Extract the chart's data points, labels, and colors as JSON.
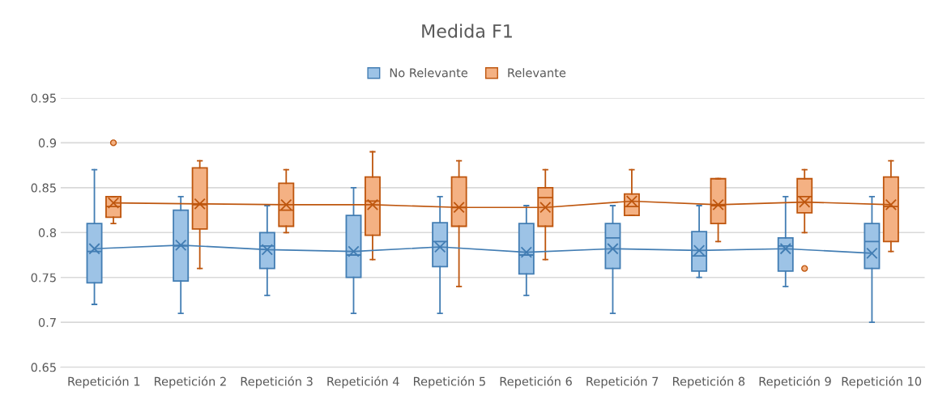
{
  "chart_data": {
    "type": "box",
    "title": "Medida F1",
    "categories": [
      "Repetición 1",
      "Repetición 2",
      "Repetición 3",
      "Repetición 4",
      "Repetición 5",
      "Repetición 6",
      "Repetición 7",
      "Repetición 8",
      "Repetición 9",
      "Repetición 10"
    ],
    "series": [
      {
        "name": "No Relevante",
        "color": "#9dc3e6",
        "boxes": [
          {
            "low": 0.72,
            "q1": 0.744,
            "median": 0.779,
            "q3": 0.81,
            "high": 0.87,
            "mean": 0.782
          },
          {
            "low": 0.71,
            "q1": 0.746,
            "median": 0.785,
            "q3": 0.825,
            "high": 0.84,
            "mean": 0.786
          },
          {
            "low": 0.73,
            "q1": 0.76,
            "median": 0.785,
            "q3": 0.8,
            "high": 0.83,
            "mean": 0.781
          },
          {
            "low": 0.71,
            "q1": 0.75,
            "median": 0.775,
            "q3": 0.819,
            "high": 0.85,
            "mean": 0.779
          },
          {
            "low": 0.71,
            "q1": 0.762,
            "median": 0.79,
            "q3": 0.811,
            "high": 0.84,
            "mean": 0.784
          },
          {
            "low": 0.73,
            "q1": 0.754,
            "median": 0.775,
            "q3": 0.81,
            "high": 0.83,
            "mean": 0.778
          },
          {
            "low": 0.71,
            "q1": 0.76,
            "median": 0.794,
            "q3": 0.81,
            "high": 0.83,
            "mean": 0.782
          },
          {
            "low": 0.75,
            "q1": 0.757,
            "median": 0.774,
            "q3": 0.801,
            "high": 0.83,
            "mean": 0.78
          },
          {
            "low": 0.74,
            "q1": 0.757,
            "median": 0.785,
            "q3": 0.794,
            "high": 0.84,
            "mean": 0.782
          },
          {
            "low": 0.7,
            "q1": 0.76,
            "median": 0.79,
            "q3": 0.81,
            "high": 0.84,
            "mean": 0.777
          }
        ]
      },
      {
        "name": "Relevante",
        "color": "#f4b183",
        "boxes": [
          {
            "low": 0.81,
            "q1": 0.817,
            "median": 0.829,
            "q3": 0.84,
            "high": 0.84,
            "mean": 0.833,
            "outliers": [
              0.9
            ]
          },
          {
            "low": 0.76,
            "q1": 0.804,
            "median": 0.831,
            "q3": 0.872,
            "high": 0.88,
            "mean": 0.832
          },
          {
            "low": 0.8,
            "q1": 0.807,
            "median": 0.825,
            "q3": 0.855,
            "high": 0.87,
            "mean": 0.831
          },
          {
            "low": 0.77,
            "q1": 0.797,
            "median": 0.835,
            "q3": 0.862,
            "high": 0.89,
            "mean": 0.831
          },
          {
            "low": 0.74,
            "q1": 0.807,
            "median": 0.828,
            "q3": 0.862,
            "high": 0.88,
            "mean": 0.828
          },
          {
            "low": 0.77,
            "q1": 0.807,
            "median": 0.839,
            "q3": 0.85,
            "high": 0.87,
            "mean": 0.828
          },
          {
            "low": 0.819,
            "q1": 0.819,
            "median": 0.829,
            "q3": 0.843,
            "high": 0.87,
            "mean": 0.835
          },
          {
            "low": 0.79,
            "q1": 0.81,
            "median": 0.83,
            "q3": 0.86,
            "high": 0.86,
            "mean": 0.831
          },
          {
            "low": 0.8,
            "q1": 0.822,
            "median": 0.84,
            "q3": 0.86,
            "high": 0.87,
            "mean": 0.834,
            "outliers": [
              0.76
            ]
          },
          {
            "low": 0.779,
            "q1": 0.79,
            "median": 0.829,
            "q3": 0.862,
            "high": 0.88,
            "mean": 0.831
          }
        ]
      },
      {
        "type": "line",
        "color": "#427db3",
        "values": [
          0.782,
          0.786,
          0.781,
          0.779,
          0.784,
          0.778,
          0.782,
          0.78,
          0.782,
          0.777
        ]
      },
      {
        "type": "line",
        "color": "#be560e",
        "values": [
          0.833,
          0.832,
          0.831,
          0.831,
          0.828,
          0.828,
          0.835,
          0.831,
          0.834,
          0.831
        ]
      }
    ],
    "ylim": [
      0.65,
      0.95
    ],
    "yticks": [
      0.65,
      0.7,
      0.75,
      0.8,
      0.85,
      0.9,
      0.95
    ],
    "grid": "y",
    "legend": "top"
  }
}
